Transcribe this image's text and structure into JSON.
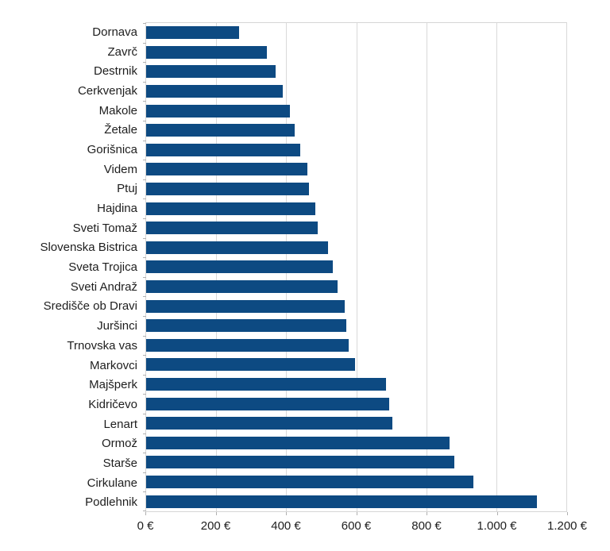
{
  "chart_data": {
    "type": "bar",
    "orientation": "horizontal",
    "title": "",
    "xlabel": "",
    "ylabel": "",
    "grid": true,
    "legend": false,
    "xlim": [
      0,
      1200
    ],
    "categories": [
      "Dornava",
      "Zavrč",
      "Destrnik",
      "Cerkvenjak",
      "Makole",
      "Žetale",
      "Gorišnica",
      "Videm",
      "Ptuj",
      "Hajdina",
      "Sveti Tomaž",
      "Slovenska Bistrica",
      "Sveta Trojica",
      "Sveti Andraž",
      "Središče ob Dravi",
      "Juršinci",
      "Trnovska vas",
      "Markovci",
      "Majšperk",
      "Kidričevo",
      "Lenart",
      "Ormož",
      "Starše",
      "Cirkulane",
      "Podlehnik"
    ],
    "values": [
      265,
      345,
      370,
      390,
      410,
      425,
      440,
      460,
      464,
      483,
      490,
      520,
      533,
      546,
      566,
      572,
      578,
      597,
      686,
      694,
      704,
      866,
      880,
      934,
      1115
    ],
    "value_unit": "€",
    "x_ticks": [
      {
        "value": 0,
        "label": "0 €"
      },
      {
        "value": 200,
        "label": "200 €"
      },
      {
        "value": 400,
        "label": "400 €"
      },
      {
        "value": 600,
        "label": "600 €"
      },
      {
        "value": 800,
        "label": "800 €"
      },
      {
        "value": 1000,
        "label": "1.000 €"
      },
      {
        "value": 1200,
        "label": "1.200 €"
      }
    ],
    "colors": {
      "bar": "#0d4a82",
      "grid": "#d9d9d9",
      "plot_border": "#d6d6d6",
      "axis_tick": "#b0b0b0",
      "text": "#1e1e1e",
      "background": "#ffffff"
    }
  }
}
